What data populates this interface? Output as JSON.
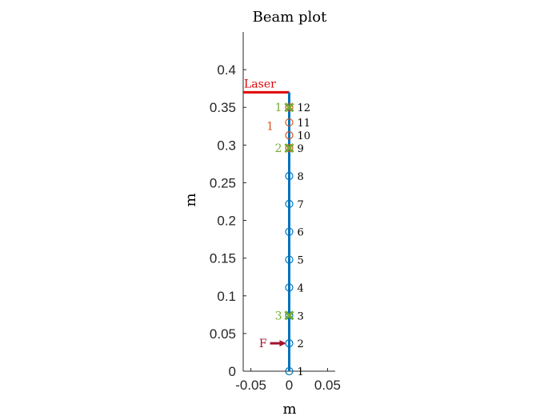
{
  "chart_data": {
    "type": "scatter",
    "title": "Beam plot",
    "xlabel": "m",
    "ylabel": "m",
    "xlim": [
      -0.06,
      0.06
    ],
    "ylim": [
      0,
      0.45
    ],
    "xticks": [
      -0.05,
      0,
      0.05
    ],
    "xtick_labels": [
      "-0.05",
      "0",
      "0.05"
    ],
    "yticks": [
      0,
      0.05,
      0.1,
      0.15,
      0.2,
      0.25,
      0.3,
      0.35,
      0.4
    ],
    "ytick_labels": [
      "0",
      "0.05",
      "0.1",
      "0.15",
      "0.2",
      "0.25",
      "0.3",
      "0.35",
      "0.4"
    ],
    "grid": false,
    "beam": {
      "x": 0,
      "y_start": 0,
      "y_end": 0.37,
      "color": "#0072BD"
    },
    "nodes": [
      {
        "label": "1",
        "x": 0,
        "y": 0.0,
        "color": "#0072BD"
      },
      {
        "label": "2",
        "x": 0,
        "y": 0.037,
        "color": "#0072BD"
      },
      {
        "label": "3",
        "x": 0,
        "y": 0.074,
        "color": "#0072BD"
      },
      {
        "label": "4",
        "x": 0,
        "y": 0.111,
        "color": "#0072BD"
      },
      {
        "label": "5",
        "x": 0,
        "y": 0.148,
        "color": "#0072BD"
      },
      {
        "label": "6",
        "x": 0,
        "y": 0.185,
        "color": "#0072BD"
      },
      {
        "label": "7",
        "x": 0,
        "y": 0.222,
        "color": "#0072BD"
      },
      {
        "label": "8",
        "x": 0,
        "y": 0.259,
        "color": "#0072BD"
      },
      {
        "label": "9",
        "x": 0,
        "y": 0.296,
        "color": "#D95319"
      },
      {
        "label": "10",
        "x": 0,
        "y": 0.313,
        "color": "#D95319"
      },
      {
        "label": "11",
        "x": 0,
        "y": 0.33,
        "color": "#D95319"
      },
      {
        "label": "12",
        "x": 0,
        "y": 0.35,
        "color": "#D95319"
      }
    ],
    "supports": [
      {
        "label": "1",
        "x": 0,
        "y": 0.35,
        "color": "#77AC30"
      },
      {
        "label": "2",
        "x": 0,
        "y": 0.296,
        "color": "#77AC30"
      },
      {
        "label": "3",
        "x": 0,
        "y": 0.074,
        "color": "#77AC30"
      }
    ],
    "region_label": {
      "text": "1",
      "x": -0.025,
      "y": 0.32,
      "color": "#D95319"
    },
    "laser": {
      "label": "Laser",
      "x_start": -0.06,
      "x_end": 0,
      "y": 0.37,
      "color": "#E00000"
    },
    "force": {
      "label": "F",
      "x_start": -0.025,
      "x_end": 0,
      "y": 0.037,
      "color": "#A2142F"
    }
  }
}
